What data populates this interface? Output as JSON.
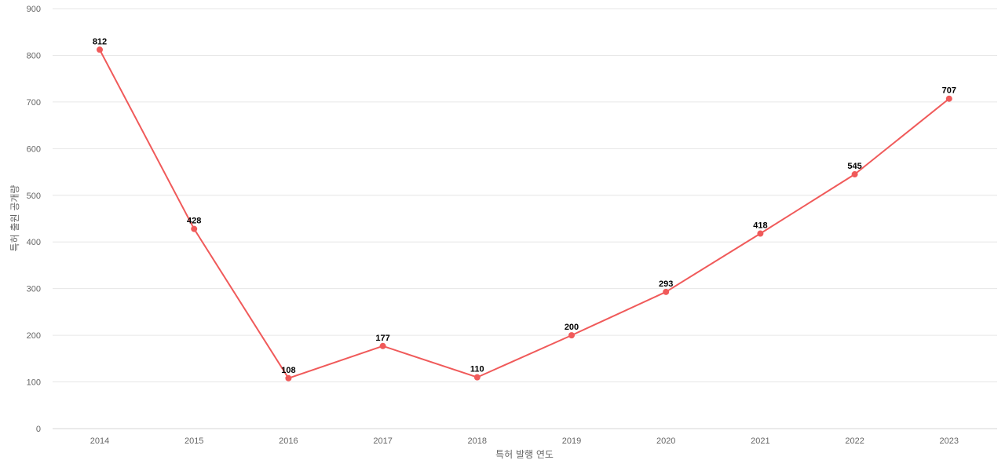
{
  "chart_data": {
    "type": "line",
    "title": "",
    "xlabel": "특허 발행 연도",
    "ylabel": "특허 출원 공개량",
    "categories": [
      "2014",
      "2015",
      "2016",
      "2017",
      "2018",
      "2019",
      "2020",
      "2021",
      "2022",
      "2023"
    ],
    "series": [
      {
        "values": [
          812,
          428,
          108,
          177,
          110,
          200,
          293,
          418,
          545,
          707
        ],
        "color": "#f05a5a"
      }
    ],
    "ylim": [
      0,
      900
    ],
    "yticks": [
      0,
      100,
      200,
      300,
      400,
      500,
      600,
      700,
      800,
      900
    ],
    "grid": true,
    "data_labels": true,
    "legend": "none"
  }
}
